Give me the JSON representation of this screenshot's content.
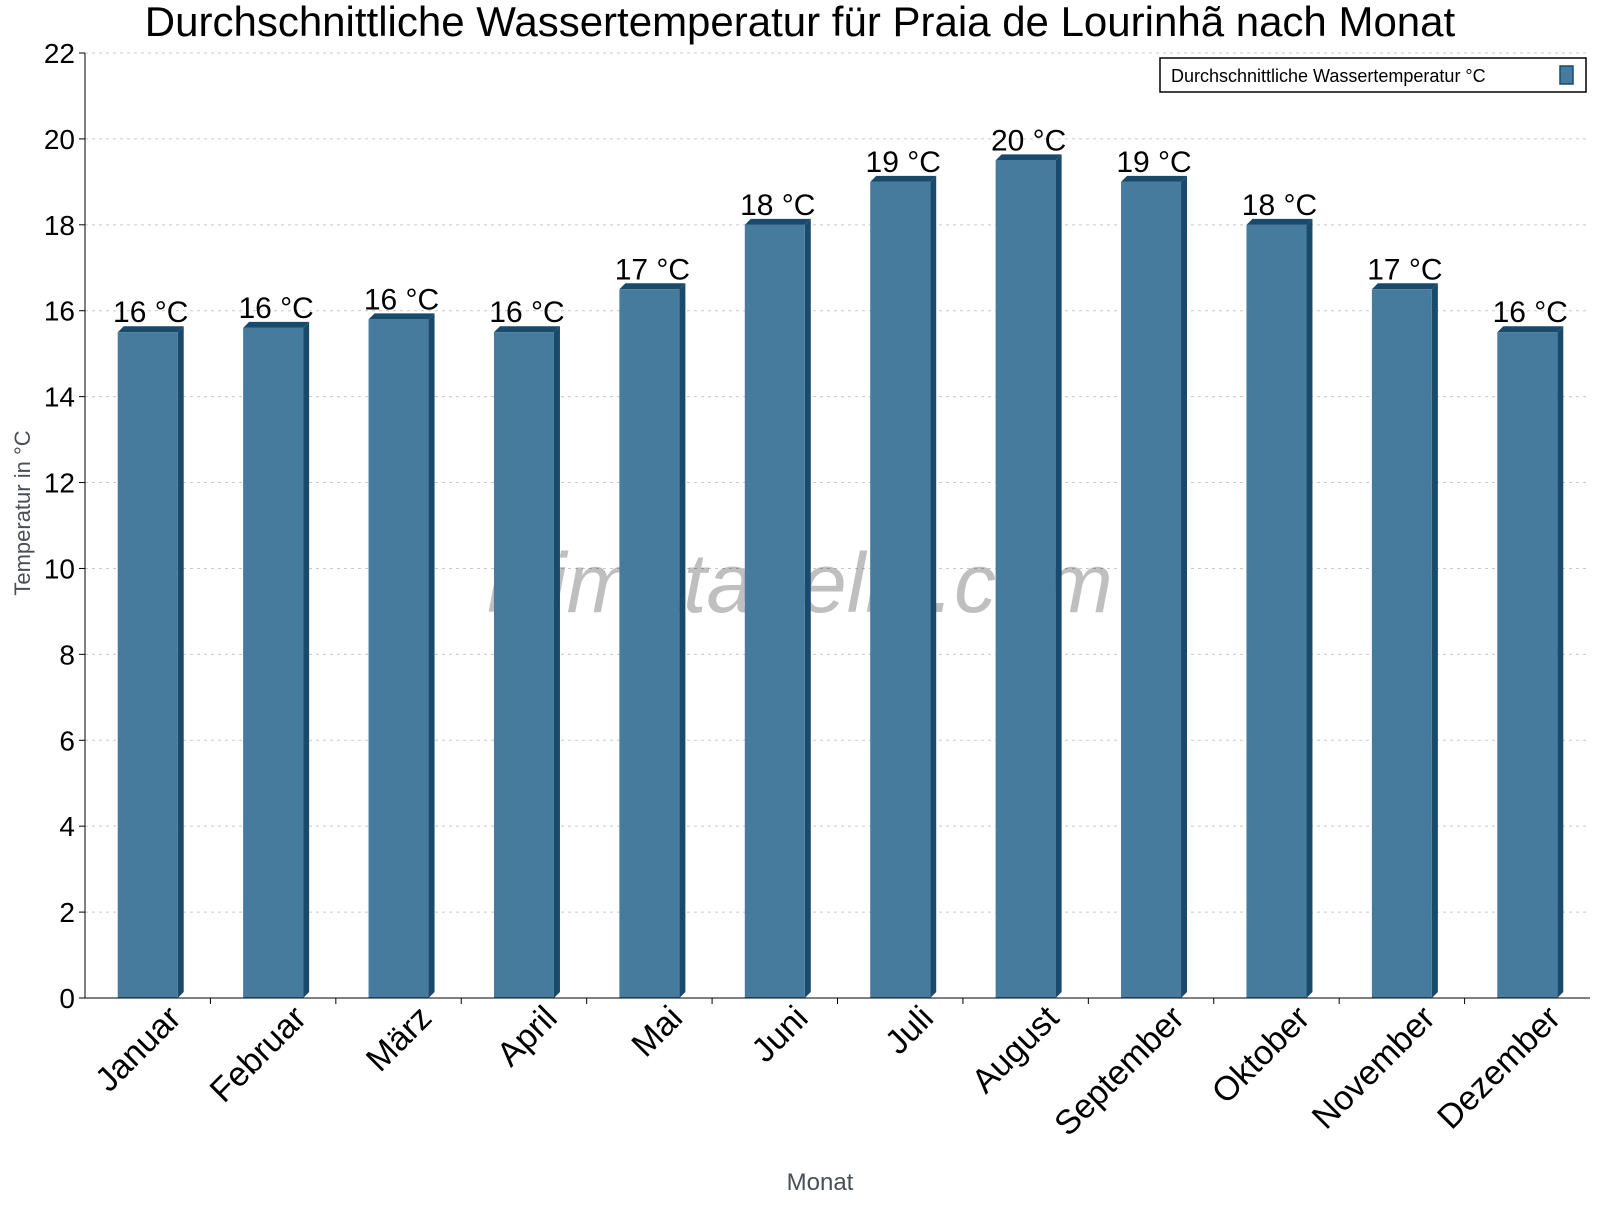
{
  "chart_data": {
    "type": "bar",
    "title": "Durchschnittliche Wassertemperatur für Praia de Lourinhã nach Monat",
    "xlabel": "Monat",
    "ylabel": "Temperatur in °C",
    "ylim": [
      0,
      22
    ],
    "yticks": [
      0,
      2,
      4,
      6,
      8,
      10,
      12,
      14,
      16,
      18,
      20,
      22
    ],
    "grid": true,
    "legend_position": "top-right",
    "categories": [
      "Januar",
      "Februar",
      "März",
      "April",
      "Mai",
      "Juni",
      "Juli",
      "August",
      "September",
      "Oktober",
      "November",
      "Dezember"
    ],
    "series": [
      {
        "name": "Durchschnittliche Wassertemperatur °C",
        "color": "#467b9d",
        "values": [
          15.5,
          15.6,
          15.8,
          15.5,
          16.5,
          18.0,
          19.0,
          19.5,
          19.0,
          18.0,
          16.5,
          15.5
        ],
        "labels": [
          "16 °C",
          "16 °C",
          "16 °C",
          "16 °C",
          "17 °C",
          "18 °C",
          "19 °C",
          "20 °C",
          "19 °C",
          "18 °C",
          "17 °C",
          "16 °C"
        ]
      }
    ],
    "watermark": "klimatabelle.com"
  }
}
